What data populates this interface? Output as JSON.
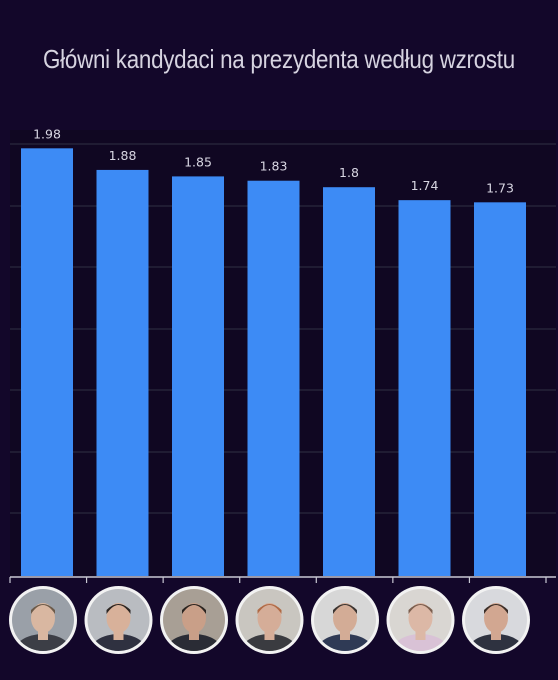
{
  "chart_data": {
    "type": "bar",
    "title": "Główni kandydaci na prezydenta według wzrostu",
    "values": [
      1.98,
      1.88,
      1.85,
      1.83,
      1.8,
      1.74,
      1.73
    ],
    "data_labels": [
      "1.98",
      "1.88",
      "1.85",
      "1.83",
      "1.8",
      "1.74",
      "1.73"
    ],
    "xlabel": "",
    "ylabel": "",
    "ylim": [
      0,
      2.0
    ],
    "grid": true,
    "bar_color": "#3d8bf5",
    "gridline_color": "#2a2a3e",
    "background_color": "#13072a"
  }
}
